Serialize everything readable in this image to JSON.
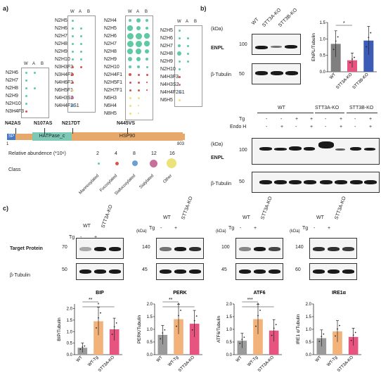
{
  "panel_labels": {
    "a": "a)",
    "b": "b)",
    "c": "c)"
  },
  "glycan_tables": [
    {
      "headers": [
        "W",
        "A",
        "B"
      ],
      "rows": [
        "N2H6",
        "N2H7",
        "N2H8",
        "N2H9",
        "N2H10",
        "N3H4F3"
      ]
    },
    {
      "headers": [
        "W",
        "A",
        "B"
      ],
      "rows": [
        "N2H5",
        "N2H6",
        "N2H7",
        "N2H8",
        "N2H9",
        "N2H10",
        "N3H3F3",
        "N3H4F3",
        "N4H6F3",
        "N6H5F1",
        "N4H3S2",
        "N4H4F2S1"
      ]
    },
    {
      "headers": [
        "W",
        "A",
        "B"
      ],
      "rows": [
        "N2H4",
        "N2H5",
        "N2H6",
        "N2H7",
        "N2H8",
        "N2H9",
        "N2H10",
        "N2H4F1",
        "N2H5F1",
        "N2H7F1",
        "N6H3",
        "N6H4",
        "N8H5"
      ]
    },
    {
      "headers": [
        "W",
        "A",
        "B"
      ],
      "rows": [
        "N2H5",
        "N2H6",
        "N2H7",
        "N2H8",
        "N2H9",
        "N2H10",
        "N4H3F3",
        "N4H3S2",
        "N4H4F2S1",
        "N6H5"
      ]
    }
  ],
  "domain_map": {
    "sites": [
      "N42AS",
      "N107AS",
      "N217DT",
      "N445VS"
    ],
    "domains": [
      "SP",
      "HATPase_c",
      "HSP90"
    ],
    "start": "1",
    "end": "803"
  },
  "legend": {
    "abundance_label": "Relative abundence (*10⁶)",
    "sizes": [
      "2",
      "4",
      "8",
      "12",
      "16"
    ],
    "class_label": "Class",
    "classes": [
      {
        "name": "Mannosylated",
        "color": "#5ec9a3"
      },
      {
        "name": "Fucosylated",
        "color": "#d9534f"
      },
      {
        "name": "Siafucosylated",
        "color": "#6a9fd0"
      },
      {
        "name": "Sialylated",
        "color": "#c8709a"
      },
      {
        "name": "Other",
        "color": "#ece27a"
      }
    ]
  },
  "panel_b": {
    "kda": "(kDa)",
    "lanes": [
      "WT",
      "STT3A-KO",
      "STT3B-KO"
    ],
    "target": "ENPL",
    "loading": "β-Tubulin",
    "markers_top": [
      "100",
      "50"
    ],
    "bar_chart": {
      "ylabel": "ENPL/Tubulin",
      "yticks": [
        "0.0",
        "0.5",
        "1.0",
        "1.5"
      ],
      "sig": "*"
    },
    "lower": {
      "groups": [
        "WT",
        "STT3A-KO",
        "STT3B-KO"
      ],
      "tg_label": "Tg",
      "endo_label": "Endo H",
      "tg": [
        "-",
        "-",
        "+",
        "+",
        "-",
        "+",
        "-",
        "+"
      ],
      "endo": [
        "-",
        "+",
        "-",
        "+",
        "-",
        "+",
        "-",
        "+"
      ],
      "markers": [
        "100",
        "50"
      ],
      "target": "ENPL",
      "loading": "β-Tubulin"
    }
  },
  "panel_c": {
    "row_target": "Target Protein",
    "row_loading": "β-Tubulin",
    "tg_label": "Tg",
    "kda": "(kDa)",
    "blots": [
      {
        "name": "BIP",
        "markers": [
          "70",
          "50"
        ],
        "has_kda": false
      },
      {
        "name": "PERK",
        "markers": [
          "140",
          "45"
        ],
        "has_kda": true
      },
      {
        "name": "ATF6",
        "markers": [
          "100",
          "45"
        ],
        "has_kda": true
      },
      {
        "name": "IRE1α",
        "markers": [
          "140",
          "60"
        ],
        "has_kda": true
      }
    ],
    "lanes": [
      "WT",
      "STT3A-KO"
    ],
    "tg": [
      "-",
      "+"
    ]
  },
  "chart_data": [
    {
      "type": "bar",
      "title": "",
      "ylabel": "ENPL/Tubulin",
      "categories": [
        "WT",
        "STT3A-KO",
        "STT3B-KO"
      ],
      "values": [
        0.85,
        0.35,
        0.95
      ],
      "ylim": [
        0,
        1.5
      ],
      "colors": [
        "#7f7f7f",
        "#e75480",
        "#3b5bb5"
      ]
    },
    {
      "type": "bar",
      "title": "BIP",
      "ylabel": "BIP/Tubulin",
      "categories": [
        "WT",
        "WT-Tg",
        "STT3A-KO"
      ],
      "values": [
        0.3,
        1.45,
        1.1
      ],
      "ylim": [
        0,
        2.2
      ],
      "yticks": [
        "0.0",
        "0.5",
        "1.0",
        "1.5",
        "2.0"
      ],
      "sig": [
        "**",
        "*"
      ],
      "colors": [
        "#9a9a9a",
        "#f2b27a",
        "#e75480"
      ]
    },
    {
      "type": "bar",
      "title": "PERK",
      "ylabel": "PERK/Tubulin",
      "categories": [
        "WT",
        "WT-Tg",
        "STT3A-KO"
      ],
      "values": [
        0.78,
        1.4,
        1.22
      ],
      "ylim": [
        0,
        2.0
      ],
      "yticks": [
        "0.0",
        "0.5",
        "1.0",
        "1.5",
        "2.0"
      ],
      "sig": [
        "**",
        "*"
      ],
      "colors": [
        "#9a9a9a",
        "#f2b27a",
        "#e75480"
      ]
    },
    {
      "type": "bar",
      "title": "ATF6",
      "ylabel": "ATF6/Tubulin",
      "categories": [
        "WT",
        "WT-Tg",
        "STT3A-KO"
      ],
      "values": [
        0.55,
        1.4,
        0.95
      ],
      "ylim": [
        0,
        2.0
      ],
      "yticks": [
        "0.0",
        "0.5",
        "1.0",
        "1.5",
        "2.0"
      ],
      "sig": [
        "***",
        "*"
      ],
      "colors": [
        "#9a9a9a",
        "#f2b27a",
        "#e75480"
      ]
    },
    {
      "type": "bar",
      "title": "IRE1α",
      "ylabel": "IRE1 α/Tubulin",
      "categories": [
        "WT",
        "WT-Tg",
        "STT3A-KO"
      ],
      "values": [
        0.65,
        0.92,
        0.7
      ],
      "ylim": [
        0,
        2.0
      ],
      "yticks": [
        "0.0",
        "0.5",
        "1.0",
        "1.5",
        "2.0"
      ],
      "sig": [],
      "colors": [
        "#9a9a9a",
        "#f2b27a",
        "#e75480"
      ]
    }
  ]
}
